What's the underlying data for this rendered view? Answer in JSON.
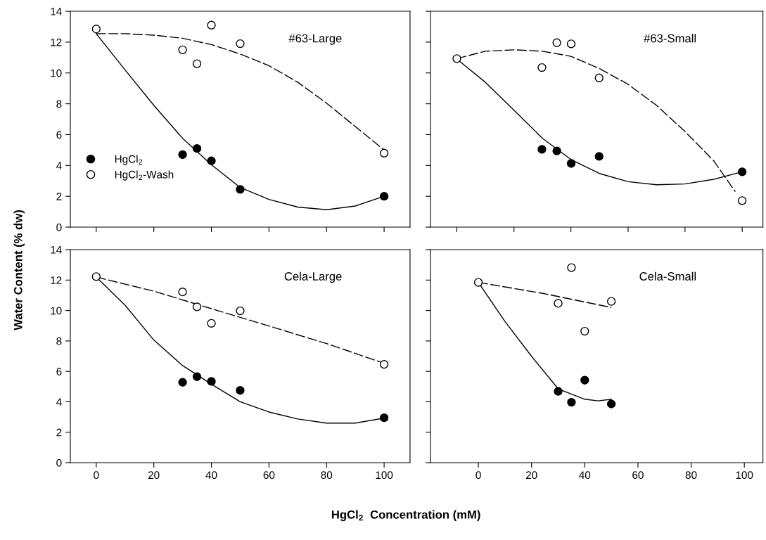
{
  "chart_data": [
    {
      "type": "scatter",
      "annotations": [
        "#63-Large"
      ],
      "ylabel": "Water Content (% dw)",
      "xlim": [
        -9,
        109
      ],
      "xticks": [
        0,
        20,
        40,
        60,
        80,
        100
      ],
      "ylim": [
        0,
        14
      ],
      "yticks": [
        0,
        2,
        4,
        6,
        8,
        10,
        12,
        14
      ],
      "tick_labels": "y",
      "legend": "left",
      "series": [
        {
          "type": "line",
          "line_style": "solid",
          "marker": "none",
          "color": "#000000",
          "x": [
            0,
            10,
            20,
            30,
            40,
            50,
            60,
            70,
            80,
            90,
            100
          ],
          "values": [
            12.55,
            10.2,
            7.9,
            5.76,
            4.05,
            2.57,
            1.8,
            1.3,
            1.13,
            1.37,
            2.0
          ]
        },
        {
          "type": "line",
          "line_style": "dashed",
          "marker": "none",
          "color": "#000000",
          "x": [
            0,
            10,
            20,
            30,
            40,
            50,
            60,
            70,
            80,
            90,
            100
          ],
          "values": [
            12.55,
            12.55,
            12.45,
            12.25,
            11.84,
            11.23,
            10.47,
            9.4,
            8.04,
            6.52,
            5.0
          ]
        },
        {
          "name": "HgCl$_{2}$",
          "marker": "circle",
          "color": "#000000",
          "x": [
            30,
            35,
            40,
            50,
            100
          ],
          "values": [
            4.7,
            5.1,
            4.3,
            2.45,
            2.0
          ]
        },
        {
          "name": "HgCl$_{2}$-Wash",
          "marker": "circle",
          "color": "#ffffff",
          "x": [
            0,
            30,
            35,
            40,
            50,
            100
          ],
          "values": [
            12.85,
            11.5,
            10.6,
            13.1,
            11.9,
            4.8
          ]
        }
      ]
    },
    {
      "type": "scatter",
      "annotations": [
        "#63-Small"
      ],
      "xlim": [
        -18,
        107
      ],
      "xticks": [
        {
          "value": -8.1,
          "label": null
        },
        {
          "value": 13.4,
          "label": null
        },
        {
          "value": 34.8,
          "label": null
        },
        {
          "value": 56.3,
          "label": null
        },
        {
          "value": 77.7,
          "label": null
        },
        {
          "value": 99.2,
          "label": null
        }
      ],
      "ylim": [
        0,
        14
      ],
      "yticks": [
        0,
        2,
        4,
        6,
        8,
        10,
        12,
        14
      ],
      "tick_labels": false,
      "series": [
        {
          "type": "line",
          "line_style": "solid",
          "marker": "none",
          "color": "#000000",
          "x": [
            -8.1,
            2.6,
            13.4,
            24.1,
            34.8,
            45.5,
            56.3,
            67.0,
            77.7,
            88.5,
            99.2
          ],
          "values": [
            10.9,
            9.4,
            7.58,
            5.76,
            4.39,
            3.48,
            2.95,
            2.75,
            2.8,
            3.1,
            3.59
          ]
        },
        {
          "type": "line",
          "line_style": "dashed",
          "marker": "none",
          "color": "#000000",
          "x": [
            -8.1,
            2.6,
            13.4,
            24.1,
            34.8,
            45.5,
            56.3,
            67.0,
            77.7,
            88.5,
            96.6
          ],
          "values": [
            10.93,
            11.41,
            11.5,
            11.41,
            11.08,
            10.29,
            9.26,
            7.9,
            6.2,
            4.3,
            2.3
          ]
        },
        {
          "marker": "circle",
          "color": "#000000",
          "x": [
            23.9,
            29.5,
            34.9,
            45.4,
            99.2
          ],
          "values": [
            5.05,
            4.94,
            4.13,
            4.59,
            3.59
          ]
        },
        {
          "marker": "circle",
          "color": "#ffffff",
          "x": [
            -8.1,
            23.9,
            29.5,
            34.9,
            45.4,
            99.2
          ],
          "values": [
            10.93,
            10.35,
            11.96,
            11.89,
            9.68,
            1.72
          ]
        }
      ]
    },
    {
      "type": "scatter",
      "annotations": [
        "Cela-Large"
      ],
      "xlabel": "HgCl$_{2}$  Concentration (mM)",
      "xlim": [
        -9,
        109
      ],
      "xticks": [
        0,
        20,
        40,
        60,
        80,
        100
      ],
      "ylim": [
        0,
        14
      ],
      "yticks": [
        0,
        2,
        4,
        6,
        8,
        10,
        12,
        14
      ],
      "series": [
        {
          "type": "line",
          "line_style": "solid",
          "marker": "none",
          "color": "#000000",
          "x": [
            0,
            10,
            20,
            30,
            40,
            50,
            60,
            70,
            80,
            90,
            100
          ],
          "values": [
            12.2,
            10.35,
            8.06,
            6.38,
            5.16,
            4.0,
            3.33,
            2.87,
            2.6,
            2.6,
            2.93
          ]
        },
        {
          "type": "line",
          "line_style": "dashed",
          "marker": "none",
          "color": "#000000",
          "x": [
            0,
            20,
            40,
            60,
            80,
            100
          ],
          "values": [
            12.2,
            11.27,
            10.12,
            8.98,
            7.83,
            6.53
          ]
        },
        {
          "marker": "circle",
          "color": "#000000",
          "x": [
            30,
            35,
            40,
            50,
            100
          ],
          "values": [
            5.28,
            5.65,
            5.34,
            4.75,
            2.95
          ]
        },
        {
          "marker": "circle",
          "color": "#ffffff",
          "x": [
            0,
            30,
            35,
            40,
            50,
            100
          ],
          "values": [
            12.23,
            11.22,
            10.24,
            9.16,
            9.98,
            6.46
          ]
        }
      ]
    },
    {
      "type": "scatter",
      "annotations": [
        "Cela-Small"
      ],
      "xlim": [
        -18,
        107
      ],
      "xticks": [
        0,
        20,
        40,
        60,
        80,
        100
      ],
      "ylim": [
        0,
        14
      ],
      "yticks": [
        0,
        2,
        4,
        6,
        8,
        10,
        12,
        14
      ],
      "tick_labels": "x",
      "series": [
        {
          "type": "line",
          "line_style": "solid",
          "marker": "none",
          "color": "#000000",
          "x": [
            0,
            10,
            20,
            30,
            40,
            45,
            50
          ],
          "values": [
            11.85,
            9.28,
            6.99,
            4.85,
            4.17,
            4.06,
            4.17
          ]
        },
        {
          "type": "line",
          "line_style": "dashed",
          "marker": "none",
          "color": "#000000",
          "x": [
            0,
            25,
            50
          ],
          "values": [
            11.85,
            11.1,
            10.2
          ]
        },
        {
          "marker": "circle",
          "color": "#000000",
          "x": [
            30,
            35,
            40,
            50
          ],
          "values": [
            4.69,
            3.97,
            5.42,
            3.86
          ]
        },
        {
          "marker": "circle",
          "color": "#ffffff",
          "x": [
            0,
            30,
            35,
            40,
            50
          ],
          "values": [
            11.85,
            10.47,
            12.82,
            8.64,
            10.6
          ]
        }
      ]
    }
  ]
}
